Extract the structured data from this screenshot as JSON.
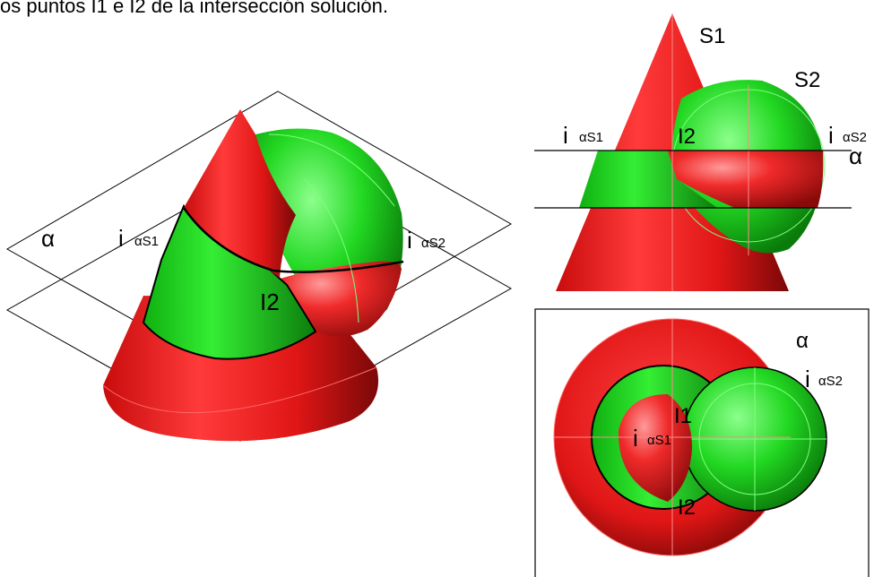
{
  "caption": "os puntos I1 e I2 de la intersección solución.",
  "colors": {
    "cone": "#e81a1a",
    "sphere": "#1ecf1e",
    "section_line": "#000000",
    "wire_red": "#ff4a4a",
    "wire_green": "#7dff7d"
  },
  "labels": {
    "alpha": "α",
    "i": "i",
    "s1_sub": "αS1",
    "s2_sub": "αS2",
    "I1": "I1",
    "I2": "I2",
    "S1": "S1",
    "S2": "S2"
  }
}
